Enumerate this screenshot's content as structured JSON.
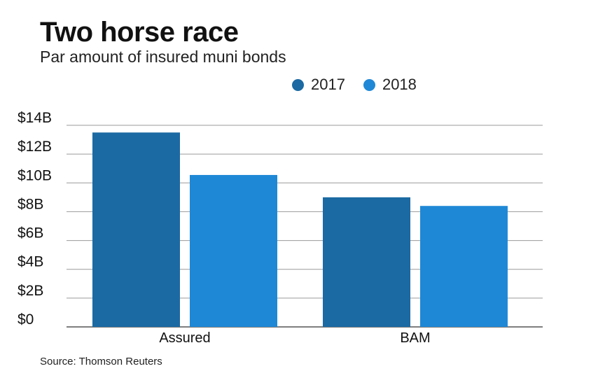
{
  "chart_data": {
    "type": "bar",
    "title": "Two horse race",
    "subtitle": "Par amount of insured muni bonds",
    "categories": [
      "Assured",
      "BAM"
    ],
    "series": [
      {
        "name": "2017",
        "values": [
          13.5,
          9.0
        ],
        "color": "#1b6aa3"
      },
      {
        "name": "2018",
        "values": [
          10.55,
          8.4
        ],
        "color": "#1f88d6"
      }
    ],
    "ylim": [
      0,
      14
    ],
    "yticks": [
      0,
      2,
      4,
      6,
      8,
      10,
      12,
      14
    ],
    "ytick_labels": [
      "$0",
      "$2B",
      "$4B",
      "$6B",
      "$8B",
      "$10B",
      "$12B",
      "$14B"
    ],
    "grid": true,
    "legend_position": "top",
    "source": "Source: Thomson Reuters"
  }
}
